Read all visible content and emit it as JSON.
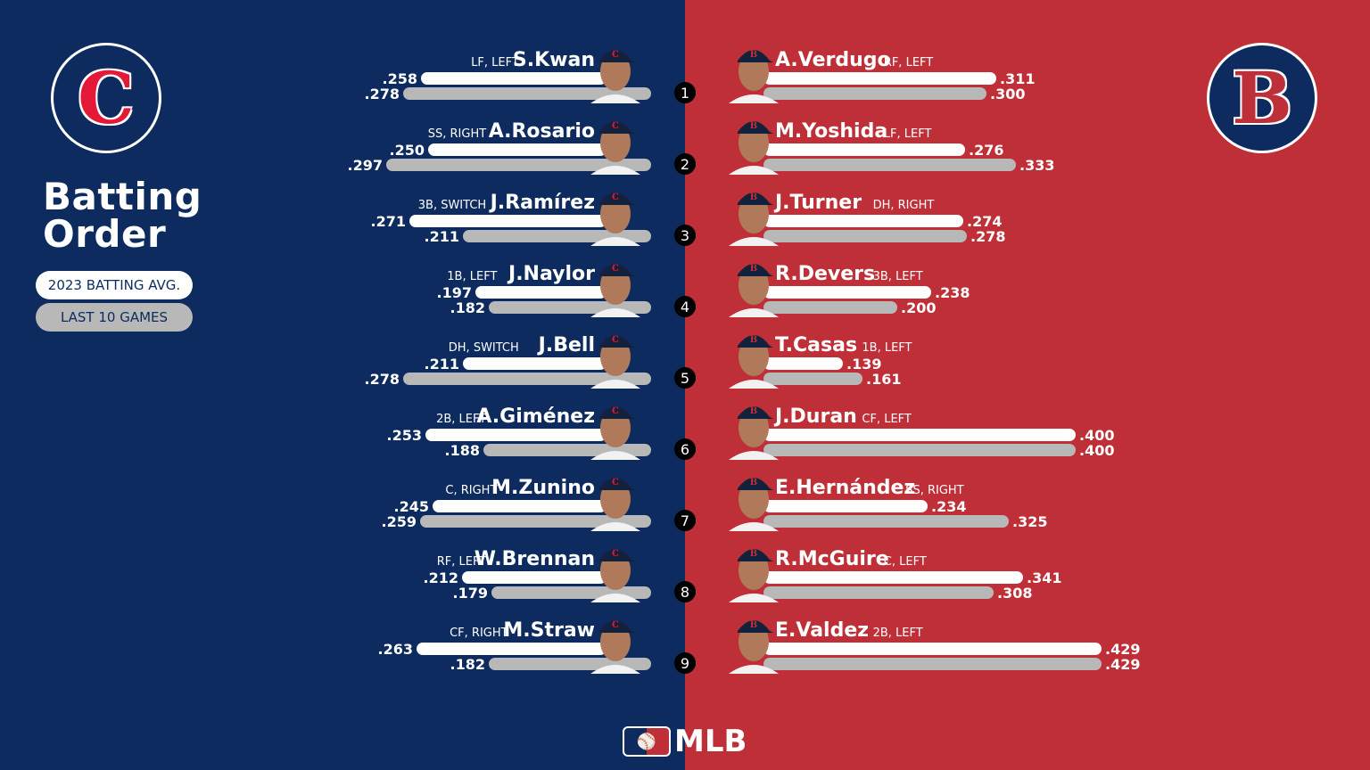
{
  "colors": {
    "left_bg": "#0d2b5e",
    "right_bg": "#bf2f38",
    "season_bar": "#ffffff",
    "last10_bar": "#b8b8b8",
    "cle_logo_red": "#e31937",
    "bos_logo_red": "#bd3039"
  },
  "title": "Batting\nOrder",
  "legend": {
    "season_label": "2023 BATTING AVG.",
    "last10_label": "LAST 10 GAMES"
  },
  "logos": {
    "cle_letter": "C",
    "bos_letter": "B",
    "mlb_text": "MLB"
  },
  "chart_data": {
    "type": "bar",
    "series": [
      {
        "name": "2023 BATTING AVG."
      },
      {
        "name": "LAST 10 GAMES"
      }
    ],
    "teams": [
      {
        "side": "left",
        "players": [
          {
            "order": "1",
            "name": "S.Kwan",
            "pos": "LF, LEFT",
            "season": ".258",
            "last10": ".278"
          },
          {
            "order": "2",
            "name": "A.Rosario",
            "pos": "SS, RIGHT",
            "season": ".250",
            "last10": ".297"
          },
          {
            "order": "3",
            "name": "J.Ramírez",
            "pos": "3B, SWITCH",
            "season": ".271",
            "last10": ".211"
          },
          {
            "order": "4",
            "name": "J.Naylor",
            "pos": "1B, LEFT",
            "season": ".197",
            "last10": ".182"
          },
          {
            "order": "5",
            "name": "J.Bell",
            "pos": "DH, SWITCH",
            "season": ".211",
            "last10": ".278"
          },
          {
            "order": "6",
            "name": "A.Giménez",
            "pos": "2B, LEFT",
            "season": ".253",
            "last10": ".188"
          },
          {
            "order": "7",
            "name": "M.Zunino",
            "pos": "C, RIGHT",
            "season": ".245",
            "last10": ".259"
          },
          {
            "order": "8",
            "name": "W.Brennan",
            "pos": "RF, LEFT",
            "season": ".212",
            "last10": ".179"
          },
          {
            "order": "9",
            "name": "M.Straw",
            "pos": "CF, RIGHT",
            "season": ".263",
            "last10": ".182"
          }
        ]
      },
      {
        "side": "right",
        "players": [
          {
            "order": "1",
            "name": "A.Verdugo",
            "pos": "RF, LEFT",
            "season": ".311",
            "last10": ".300"
          },
          {
            "order": "2",
            "name": "M.Yoshida",
            "pos": "LF, LEFT",
            "season": ".276",
            "last10": ".333"
          },
          {
            "order": "3",
            "name": "J.Turner",
            "pos": "DH, RIGHT",
            "season": ".274",
            "last10": ".278"
          },
          {
            "order": "4",
            "name": "R.Devers",
            "pos": "3B, LEFT",
            "season": ".238",
            "last10": ".200"
          },
          {
            "order": "5",
            "name": "T.Casas",
            "pos": "1B, LEFT",
            "season": ".139",
            "last10": ".161"
          },
          {
            "order": "6",
            "name": "J.Duran",
            "pos": "CF, LEFT",
            "season": ".400",
            "last10": ".400"
          },
          {
            "order": "7",
            "name": "E.Hernández",
            "pos": "SS, RIGHT",
            "season": ".234",
            "last10": ".325"
          },
          {
            "order": "8",
            "name": "R.McGuire",
            "pos": "C, LEFT",
            "season": ".341",
            "last10": ".308"
          },
          {
            "order": "9",
            "name": "E.Valdez",
            "pos": "2B, LEFT",
            "season": ".429",
            "last10": ".429"
          }
        ]
      }
    ]
  }
}
